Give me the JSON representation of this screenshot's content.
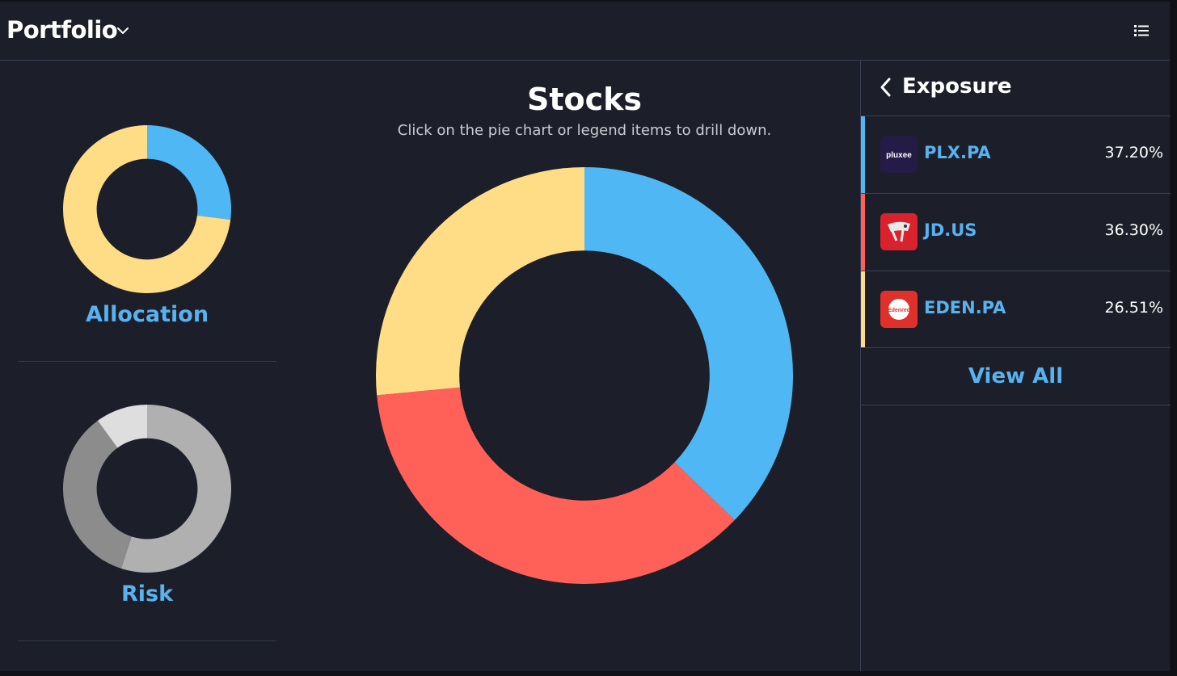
{
  "header": {
    "title": "Portfolio",
    "title_dropdown_icon": "chevron-down-icon",
    "menu_icon": "list-icon"
  },
  "left_cards": [
    {
      "label": "Allocation",
      "segments": [
        {
          "value": 27,
          "color": "#4fb8f4"
        },
        {
          "value": 73,
          "color": "#ffdd86"
        }
      ]
    },
    {
      "label": "Risk",
      "segments": [
        {
          "value": 55,
          "color": "#b0b0b0"
        },
        {
          "value": 35,
          "color": "#8c8c8c"
        },
        {
          "value": 10,
          "color": "#dedede"
        }
      ]
    }
  ],
  "main": {
    "title": "Stocks",
    "subtitle": "Click on the pie chart or legend items to drill down."
  },
  "chart_data": {
    "type": "pie",
    "title": "Stocks",
    "categories": [
      "PLX.PA",
      "JD.US",
      "EDEN.PA"
    ],
    "values": [
      37.2,
      36.3,
      26.51
    ],
    "colors": [
      "#4fb8f4",
      "#ff6058",
      "#ffdd86"
    ]
  },
  "exposure": {
    "title": "Exposure",
    "back_icon": "chevron-left-icon",
    "items": [
      {
        "ticker": "PLX.PA",
        "percent": "37.20%",
        "color": "#4fb8f4",
        "logo_text": "pluxee",
        "logo_bg": "#241b47"
      },
      {
        "ticker": "JD.US",
        "percent": "36.30%",
        "color": "#ff6058",
        "logo_text": "",
        "logo_bg": "#d8232f"
      },
      {
        "ticker": "EDEN.PA",
        "percent": "26.51%",
        "color": "#ffdd86",
        "logo_text": "Edenred",
        "logo_bg": "#e0302b"
      }
    ],
    "view_all_label": "View All"
  }
}
